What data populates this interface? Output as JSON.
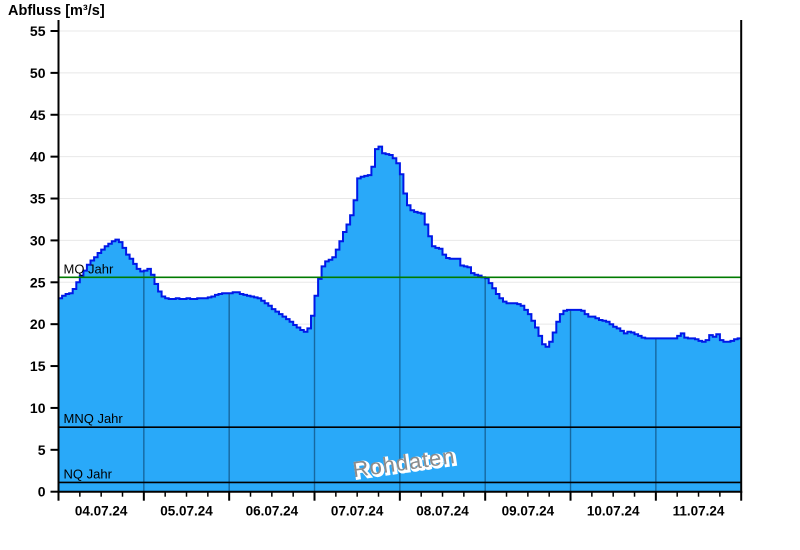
{
  "chart_data": {
    "type": "area",
    "title": "Abfluss [m³/s]",
    "watermark": "Rohdaten",
    "y": {
      "label": "Abfluss [m³/s]",
      "min": 0,
      "max": 55,
      "tick_step": 5,
      "tick_labels": [
        "0",
        "5",
        "10",
        "15",
        "20",
        "25",
        "30",
        "35",
        "40",
        "45",
        "50",
        "55"
      ]
    },
    "x": {
      "start": "04.07.24 00:00",
      "end": "12.07.24 00:00",
      "interval_hours": 1,
      "minor_tick_hours": 6,
      "day_labels": [
        "04.07.24",
        "05.07.24",
        "06.07.24",
        "07.07.24",
        "08.07.24",
        "09.07.24",
        "10.07.24",
        "11.07.24"
      ]
    },
    "grid": true,
    "legend_position": "none",
    "series": [
      {
        "name": "Abfluss",
        "unit": "m³/s",
        "values": [
          23.1,
          23.4,
          23.6,
          23.7,
          24.2,
          25.0,
          25.8,
          26.4,
          27.1,
          27.6,
          28.0,
          28.5,
          28.9,
          29.3,
          29.6,
          29.9,
          30.1,
          29.8,
          29.1,
          28.3,
          27.8,
          27.2,
          26.6,
          26.3,
          26.4,
          26.6,
          25.9,
          24.8,
          23.9,
          23.3,
          23.1,
          23.0,
          23.0,
          23.1,
          23.0,
          23.0,
          23.1,
          23.0,
          23.0,
          23.1,
          23.1,
          23.1,
          23.2,
          23.3,
          23.5,
          23.6,
          23.7,
          23.7,
          23.7,
          23.8,
          23.8,
          23.6,
          23.5,
          23.4,
          23.3,
          23.2,
          23.1,
          22.8,
          22.5,
          22.2,
          21.8,
          21.5,
          21.2,
          20.9,
          20.6,
          20.3,
          19.9,
          19.6,
          19.3,
          19.1,
          19.5,
          21.0,
          23.4,
          25.4,
          26.9,
          27.5,
          27.7,
          28.0,
          28.9,
          29.9,
          31.0,
          31.9,
          33.0,
          34.8,
          37.4,
          37.6,
          37.7,
          37.8,
          38.8,
          40.9,
          41.2,
          40.4,
          40.3,
          40.2,
          39.8,
          39.2,
          37.9,
          35.6,
          34.2,
          33.6,
          33.4,
          33.3,
          33.2,
          31.9,
          30.5,
          29.3,
          29.1,
          29.0,
          28.3,
          27.9,
          27.8,
          27.8,
          27.8,
          27.0,
          26.9,
          26.8,
          26.1,
          25.9,
          25.8,
          25.6,
          25.5,
          24.9,
          24.3,
          23.6,
          23.1,
          22.7,
          22.5,
          22.5,
          22.5,
          22.4,
          22.2,
          21.7,
          21.2,
          20.4,
          19.6,
          18.6,
          17.6,
          17.3,
          17.9,
          19.0,
          20.3,
          21.2,
          21.6,
          21.7,
          21.7,
          21.7,
          21.7,
          21.6,
          21.2,
          20.9,
          20.9,
          20.7,
          20.5,
          20.4,
          20.3,
          20.0,
          19.7,
          19.5,
          19.2,
          18.9,
          19.1,
          19.0,
          18.8,
          18.6,
          18.4,
          18.3,
          18.3,
          18.3,
          18.3,
          18.3,
          18.3,
          18.3,
          18.3,
          18.3,
          18.6,
          18.9,
          18.4,
          18.3,
          18.3,
          18.2,
          18.0,
          17.9,
          18.1,
          18.7,
          18.5,
          18.8,
          18.1,
          17.9,
          17.9,
          18.0,
          18.2,
          18.3,
          18.3
        ]
      }
    ],
    "reference_lines": [
      {
        "label": "MQ Jahr",
        "value": 25.6,
        "color": "#007b00"
      },
      {
        "label": "MNQ Jahr",
        "value": 7.7,
        "color": "#000000"
      },
      {
        "label": "NQ Jahr",
        "value": 1.1,
        "color": "#000000"
      }
    ]
  },
  "colors": {
    "area_fill": "#29a9f9",
    "area_outline": "#0018e8",
    "gridline": "#e8e8e8",
    "axis": "#000000",
    "day_separator": "rgba(0,25,51,0.45)",
    "watermark_text": "#8c8c8c",
    "background": "#ffffff"
  }
}
